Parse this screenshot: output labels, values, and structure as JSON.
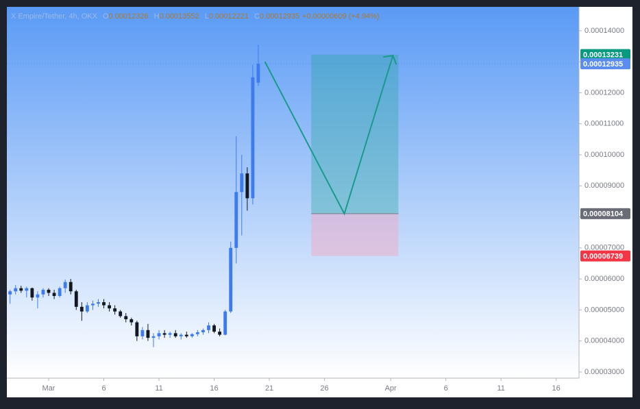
{
  "chart_data": {
    "type": "candlestick",
    "title": "X Empire/Tether, 4h, OKX",
    "legend": [
      {
        "label": "O",
        "value": 0.00012326
      },
      {
        "label": "H",
        "value": 0.00013552
      },
      {
        "label": "L",
        "value": 0.00012221
      },
      {
        "label": "C",
        "value": 0.00012935
      }
    ],
    "change": "+0.00000609 (+4.94%)",
    "up_color": "#3d7bf0",
    "down_color": "#131722",
    "x": [
      -2.5,
      -2,
      -1.5,
      -1,
      -0.5,
      0,
      0.5,
      1,
      1.5,
      2,
      2.5,
      3,
      3.5,
      4,
      4.5,
      5,
      5.5,
      6,
      6.5,
      7,
      7.5,
      8,
      8.5,
      9,
      9.5,
      10,
      10.5,
      11,
      11.5,
      12,
      12.5,
      13,
      13.5,
      14,
      14.5,
      15,
      15.5,
      16,
      16.5,
      17,
      17.5,
      18,
      18.5,
      19,
      19.5,
      20
    ],
    "open": [
      5.5e-05,
      5.6e-05,
      5.7e-05,
      5.62e-05,
      5.7e-05,
      5.4e-05,
      5.5e-05,
      5.65e-05,
      5.55e-05,
      5.45e-05,
      5.7e-05,
      5.9e-05,
      5.6e-05,
      5.1e-05,
      4.95e-05,
      5.15e-05,
      5.2e-05,
      5.25e-05,
      5.15e-05,
      5.05e-05,
      4.95e-05,
      4.8e-05,
      4.7e-05,
      4.6e-05,
      4.15e-05,
      4.35e-05,
      4.1e-05,
      4.15e-05,
      4.25e-05,
      4.2e-05,
      4.25e-05,
      4.15e-05,
      4.2e-05,
      4.15e-05,
      4.22e-05,
      4.28e-05,
      4.35e-05,
      4.5e-05,
      4.3e-05,
      4.2e-05,
      4.95e-05,
      7e-05,
      8.8e-05,
      9.4e-05,
      8.6e-05,
      0.00012326
    ],
    "high": [
      5.65e-05,
      5.8e-05,
      5.78e-05,
      5.75e-05,
      5.72e-05,
      5.6e-05,
      5.7e-05,
      5.7e-05,
      5.65e-05,
      5.75e-05,
      5.98e-05,
      6e-05,
      5.65e-05,
      5.25e-05,
      5.25e-05,
      5.3e-05,
      5.35e-05,
      5.35e-05,
      5.25e-05,
      5.15e-05,
      5e-05,
      4.9e-05,
      4.75e-05,
      4.65e-05,
      4.45e-05,
      4.55e-05,
      4.25e-05,
      4.35e-05,
      4.35e-05,
      4.3e-05,
      4.35e-05,
      4.25e-05,
      4.3e-05,
      4.25e-05,
      4.35e-05,
      4.4e-05,
      4.6e-05,
      4.55e-05,
      4.4e-05,
      5e-05,
      7.2e-05,
      0.000106,
      0.0001,
      9.6e-05,
      0.000129,
      0.00013552
    ],
    "low": [
      5.2e-05,
      5.5e-05,
      5.55e-05,
      5.4e-05,
      5.3e-05,
      5.05e-05,
      5.4e-05,
      5.45e-05,
      5.35e-05,
      5.4e-05,
      5.55e-05,
      5.5e-05,
      5e-05,
      4.65e-05,
      4.9e-05,
      5e-05,
      5.1e-05,
      5.05e-05,
      4.95e-05,
      4.85e-05,
      4.75e-05,
      4.6e-05,
      4.5e-05,
      4e-05,
      4.05e-05,
      4e-05,
      3.8e-05,
      4.05e-05,
      4.1e-05,
      4.1e-05,
      4.1e-05,
      4.05e-05,
      4.1e-05,
      4.1e-05,
      4.15e-05,
      4.2e-05,
      4.25e-05,
      4.25e-05,
      4.15e-05,
      4.18e-05,
      4.9e-05,
      6.5e-05,
      7.4e-05,
      8.2e-05,
      8.4e-05,
      0.00012221
    ],
    "close": [
      5.6e-05,
      5.7e-05,
      5.62e-05,
      5.7e-05,
      5.4e-05,
      5.5e-05,
      5.65e-05,
      5.55e-05,
      5.45e-05,
      5.7e-05,
      5.9e-05,
      5.6e-05,
      5.1e-05,
      4.95e-05,
      5.15e-05,
      5.2e-05,
      5.25e-05,
      5.15e-05,
      5.05e-05,
      4.95e-05,
      4.8e-05,
      4.7e-05,
      4.6e-05,
      4.15e-05,
      4.35e-05,
      4.1e-05,
      4.15e-05,
      4.25e-05,
      4.2e-05,
      4.25e-05,
      4.15e-05,
      4.2e-05,
      4.15e-05,
      4.22e-05,
      4.28e-05,
      4.35e-05,
      4.5e-05,
      4.3e-05,
      4.2e-05,
      4.95e-05,
      7e-05,
      8.8e-05,
      9.4e-05,
      8.6e-05,
      0.000125,
      0.00012935
    ],
    "xlim": [
      -2.79,
      49.07
    ],
    "xticks": [
      {
        "value": 1,
        "label": "Mar"
      },
      6,
      11,
      16,
      21,
      26,
      {
        "value": 32,
        "label": "Apr"
      },
      {
        "value": 37,
        "label": "6"
      },
      {
        "value": 42,
        "label": "11"
      },
      {
        "value": 47,
        "label": "16"
      }
    ],
    "ylim": [
      2.8e-05,
      0.0001477
    ],
    "yticks": [
      {
        "value": 3e-05,
        "label": "0.00003000"
      },
      {
        "value": 4e-05,
        "label": "0.00004000"
      },
      {
        "value": 5e-05,
        "label": "0.00005000"
      },
      {
        "value": 6e-05,
        "label": "0.00006000"
      },
      {
        "value": 7e-05,
        "label": "0.00007000"
      },
      {
        "value": 8e-05,
        "label": "0.00008000"
      },
      {
        "value": 9e-05,
        "label": "0.00009000"
      },
      {
        "value": 0.0001,
        "label": "0.00010000"
      },
      {
        "value": 0.00011,
        "label": "0.00011000"
      },
      {
        "value": 0.00012,
        "label": "0.00012000"
      },
      {
        "value": 0.00013,
        "label": "0.00013000"
      },
      {
        "value": 0.00014,
        "label": "0.00014000"
      }
    ],
    "position": {
      "x": [
        24.8,
        32.7
      ],
      "target": 0.00013231,
      "entry": 8.104e-05,
      "stop": 6.739e-05
    },
    "arrow": {
      "x": [
        20.6,
        27.8,
        32.2
      ],
      "y": [
        0.00013,
        8.1e-05,
        0.000132
      ]
    }
  }
}
